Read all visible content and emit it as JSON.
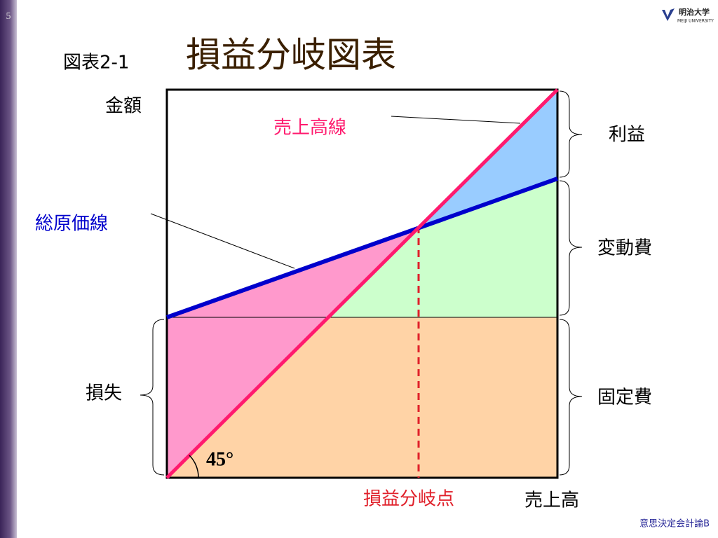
{
  "slide_number": "5",
  "logo": {
    "name": "明治大学",
    "sub": "MEIJI UNIVERSITY"
  },
  "header": {
    "figure_label": "図表2-1",
    "title": "損益分岐図表"
  },
  "diagram": {
    "y_axis_label": "金額",
    "x_axis_label": "売上高",
    "sales_line": "売上高線",
    "total_cost_line": "総原価線",
    "profit": "利益",
    "variable_cost": "変動費",
    "fixed_cost": "固定費",
    "loss": "損失",
    "angle": "45°",
    "break_even_point": "損益分岐点"
  },
  "footer": "意思決定会計論B"
}
